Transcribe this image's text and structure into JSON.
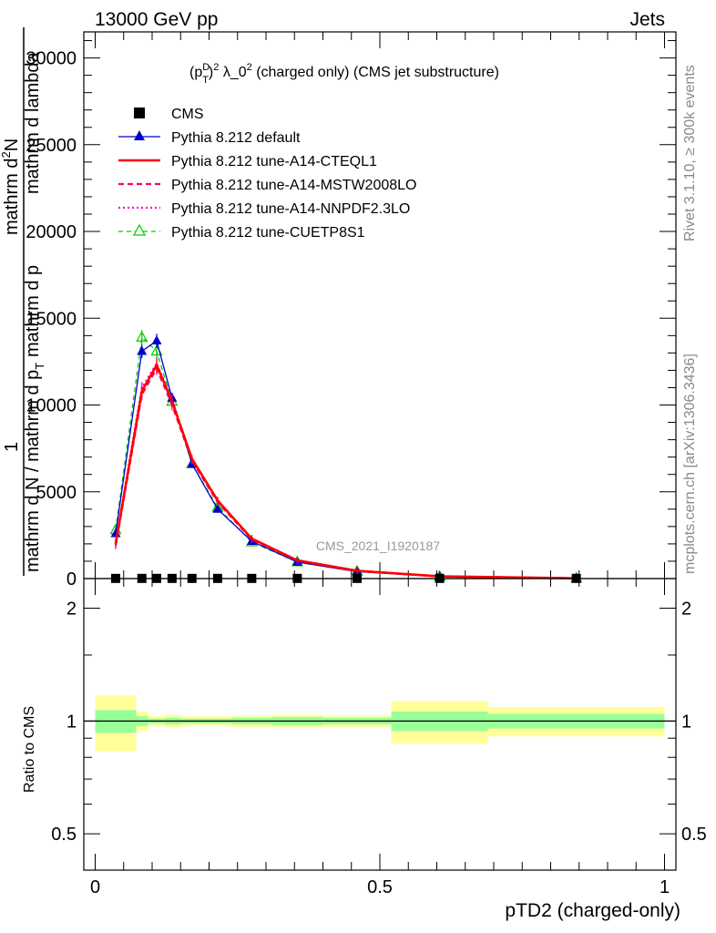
{
  "header": {
    "energy_label": "13000 GeV pp",
    "category_label": "Jets",
    "plot_title_base": "(p",
    "plot_title_sup_d": "D",
    "plot_title_sub_t": "T",
    "plot_title_sup_2": "2",
    "plot_title_mid": " λ_0",
    "plot_title_sup_2b": "2",
    "plot_title_rest": " (charged only) (CMS jet substructure)"
  },
  "side_labels": {
    "rivet": "Rivet 3.1.10, ≥ 300k events",
    "mcplots": "mcplots.cern.ch [arXiv:1306.3436]"
  },
  "watermark": "CMS_2021_I1920187",
  "ylabel_main": {
    "numerator_one": "1",
    "denominator_left": "mathrm d N / mathrm d p",
    "denominator_sub": "T",
    "part2": "mathrm d p",
    "part3": "mathrm d lambda",
    "dn": "mathrm d",
    "dn_sup": "2",
    "dn_n": "N"
  },
  "ylabel_ratio": "Ratio to CMS",
  "xlabel": "pTD2 (charged-only)",
  "colors": {
    "cms": "#000000",
    "default": "#0000cc",
    "cteql1": "#ff0000",
    "mstw": "#ff0066",
    "nnpdf": "#ff00cc",
    "cuetp8s1": "#00cc00",
    "band_yellow": "#ffff99",
    "band_green": "#99ff99"
  },
  "legend": [
    {
      "label": "CMS"
    },
    {
      "label": "Pythia 8.212 default"
    },
    {
      "label": "Pythia 8.212 tune-A14-CTEQL1"
    },
    {
      "label": "Pythia 8.212 tune-A14-MSTW2008LO"
    },
    {
      "label": "Pythia 8.212 tune-A14-NNPDF2.3LO"
    },
    {
      "label": "Pythia 8.212 tune-CUETP8S1"
    }
  ],
  "chart_data": {
    "type": "line",
    "xlim": [
      -0.02,
      1.02
    ],
    "ylim": [
      0,
      31500
    ],
    "yticks": [
      0,
      5000,
      10000,
      15000,
      20000,
      25000,
      30000
    ],
    "ytick_labels": [
      "0",
      "5000",
      "10000",
      "15000",
      "20000",
      "25000",
      "30000"
    ],
    "xticks": [
      0,
      0.5,
      1
    ],
    "xtick_labels": [
      "0",
      "0.5",
      "1"
    ],
    "x": [
      0.036,
      0.082,
      0.108,
      0.135,
      0.17,
      0.215,
      0.275,
      0.355,
      0.46,
      0.605,
      0.845
    ],
    "bin_edges": [
      0.0,
      0.072,
      0.093,
      0.122,
      0.15,
      0.192,
      0.24,
      0.31,
      0.4,
      0.52,
      0.69,
      1.0
    ],
    "series": [
      {
        "name": "CMS",
        "values": [
          10,
          10,
          10,
          10,
          10,
          10,
          10,
          10,
          10,
          10,
          10
        ]
      },
      {
        "name": "Pythia 8.212 default",
        "values": [
          2600,
          13100,
          13700,
          10400,
          6600,
          4000,
          2150,
          950,
          400,
          115,
          12
        ]
      },
      {
        "name": "Pythia 8.212 tune-A14-CTEQL1",
        "values": [
          2000,
          10800,
          12300,
          10200,
          6900,
          4500,
          2300,
          1050,
          450,
          130,
          15
        ]
      },
      {
        "name": "Pythia 8.212 tune-A14-MSTW2008LO",
        "values": [
          1900,
          10600,
          12100,
          10000,
          6800,
          4400,
          2250,
          1030,
          440,
          125,
          14
        ]
      },
      {
        "name": "Pythia 8.212 tune-A14-NNPDF2.3LO",
        "values": [
          2100,
          11000,
          12400,
          10300,
          6900,
          4500,
          2300,
          1060,
          450,
          130,
          15
        ]
      },
      {
        "name": "Pythia 8.212 tune-CUETP8S1",
        "values": [
          2800,
          13900,
          13100,
          10200,
          6600,
          4100,
          2100,
          950,
          420,
          120,
          13
        ]
      }
    ],
    "ratio": {
      "ylim_log": [
        0.4,
        2.4
      ],
      "yticks": [
        0.5,
        1,
        2
      ],
      "ytick_labels": [
        "0.5",
        "1",
        "2"
      ],
      "green_band_halfwidth": [
        0.07,
        0.03,
        0.015,
        0.02,
        0.015,
        0.015,
        0.02,
        0.025,
        0.02,
        0.06,
        0.045
      ],
      "yellow_band_halfwidth": [
        0.17,
        0.06,
        0.03,
        0.04,
        0.03,
        0.03,
        0.035,
        0.04,
        0.035,
        0.13,
        0.09
      ]
    }
  }
}
